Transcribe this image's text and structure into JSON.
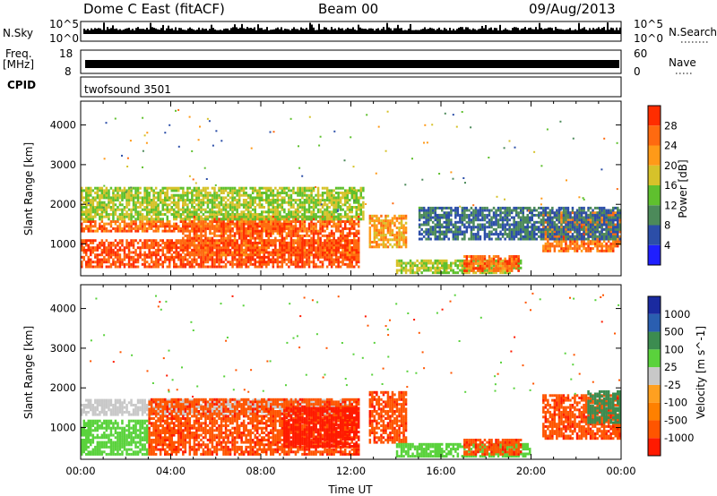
{
  "header": {
    "station": "Dome C East (fitACF)",
    "beam": "Beam 00",
    "date": "09/Aug/2013"
  },
  "noise_panel": {
    "left_label": "N.Sky",
    "right_label": "N.Search",
    "ticks": [
      "10^5",
      "10^0"
    ],
    "right_ticks": [
      "10^5",
      "10^0"
    ]
  },
  "freq_panel": {
    "left_label_1": "Freq.",
    "left_label_2": "[MHz]",
    "left_ticks": [
      "18",
      "8"
    ],
    "right_label": "Nave",
    "right_ticks": [
      "60",
      "0"
    ]
  },
  "cpid_panel": {
    "label": "CPID",
    "value": "twofsound 3501"
  },
  "colors": {
    "power_scale": [
      "#1f1fff",
      "#2c4ea8",
      "#4c8a5a",
      "#5fc02e",
      "#d6c22a",
      "#ff9a18",
      "#ff6a10",
      "#ff2d00"
    ],
    "velocity_scale": [
      "#ff1a00",
      "#ff5500",
      "#ff8000",
      "#ffa020",
      "#c8c8c8",
      "#5ad23c",
      "#3c8c50",
      "#2a5eb0",
      "#1a2aa0"
    ]
  },
  "chart_data": [
    {
      "type": "heatmap",
      "title": "Power",
      "xlabel": "Time UT",
      "ylabel": "Slant Range [km]",
      "x_ticks": [
        "00:00",
        "04:00",
        "08:00",
        "12:00",
        "16:00",
        "20:00",
        "00:00"
      ],
      "y_ticks": [
        "1000",
        "2000",
        "3000",
        "4000"
      ],
      "ylim": [
        200,
        4600
      ],
      "colorbar_label": "Power [dB]",
      "colorbar_ticks": [
        "4",
        "8",
        "12",
        "16",
        "20",
        "24",
        "28"
      ],
      "colorbar_range": [
        0,
        32
      ],
      "regions": [
        {
          "t0": 0.0,
          "t1": 12.3,
          "r0": 400,
          "r1": 1100,
          "level": 28
        },
        {
          "t0": 0.0,
          "t1": 9.5,
          "r0": 1300,
          "r1": 1600,
          "level": 26
        },
        {
          "t0": 4.5,
          "t1": 12.3,
          "r0": 700,
          "r1": 1700,
          "level": 27
        },
        {
          "t0": 0.0,
          "t1": 12.5,
          "r0": 1600,
          "r1": 2400,
          "level": 16
        },
        {
          "t0": 12.8,
          "t1": 14.4,
          "r0": 900,
          "r1": 1700,
          "level": 22
        },
        {
          "t0": 14.0,
          "t1": 19.6,
          "r0": 250,
          "r1": 600,
          "level": 16
        },
        {
          "t0": 17.0,
          "t1": 19.5,
          "r0": 300,
          "r1": 700,
          "level": 26
        },
        {
          "t0": 20.5,
          "t1": 24.0,
          "r0": 800,
          "r1": 1800,
          "level": 25
        },
        {
          "t0": 15.0,
          "t1": 24.0,
          "r0": 1100,
          "r1": 1900,
          "level": 8
        }
      ]
    },
    {
      "type": "heatmap",
      "title": "Velocity",
      "xlabel": "Time UT",
      "ylabel": "Slant Range [km]",
      "x_ticks": [
        "00:00",
        "04:00",
        "08:00",
        "12:00",
        "16:00",
        "20:00",
        "00:00"
      ],
      "y_ticks": [
        "1000",
        "2000",
        "3000",
        "4000"
      ],
      "ylim": [
        200,
        4600
      ],
      "colorbar_label": "Velocity [m s^-1]",
      "colorbar_ticks": [
        "1000",
        "500",
        "100",
        "25",
        "-25",
        "-100",
        "-500",
        "-1000"
      ],
      "regions": [
        {
          "t0": 0.0,
          "t1": 3.0,
          "r0": 300,
          "r1": 1200,
          "level": 100
        },
        {
          "t0": 0.0,
          "t1": 12.0,
          "r0": 1300,
          "r1": 1700,
          "level": 0
        },
        {
          "t0": 3.0,
          "t1": 12.3,
          "r0": 300,
          "r1": 1700,
          "level": -150
        },
        {
          "t0": 9.0,
          "t1": 12.3,
          "r0": 500,
          "r1": 1500,
          "level": -600
        },
        {
          "t0": 12.8,
          "t1": 14.4,
          "r0": 600,
          "r1": 1900,
          "level": -150
        },
        {
          "t0": 14.0,
          "t1": 20.0,
          "r0": 250,
          "r1": 600,
          "level": 100
        },
        {
          "t0": 17.0,
          "t1": 19.6,
          "r0": 300,
          "r1": 700,
          "level": -150
        },
        {
          "t0": 20.5,
          "t1": 24.0,
          "r0": 700,
          "r1": 1800,
          "level": -150
        },
        {
          "t0": 22.5,
          "t1": 24.0,
          "r0": 1100,
          "r1": 1900,
          "level": 120
        }
      ]
    }
  ]
}
